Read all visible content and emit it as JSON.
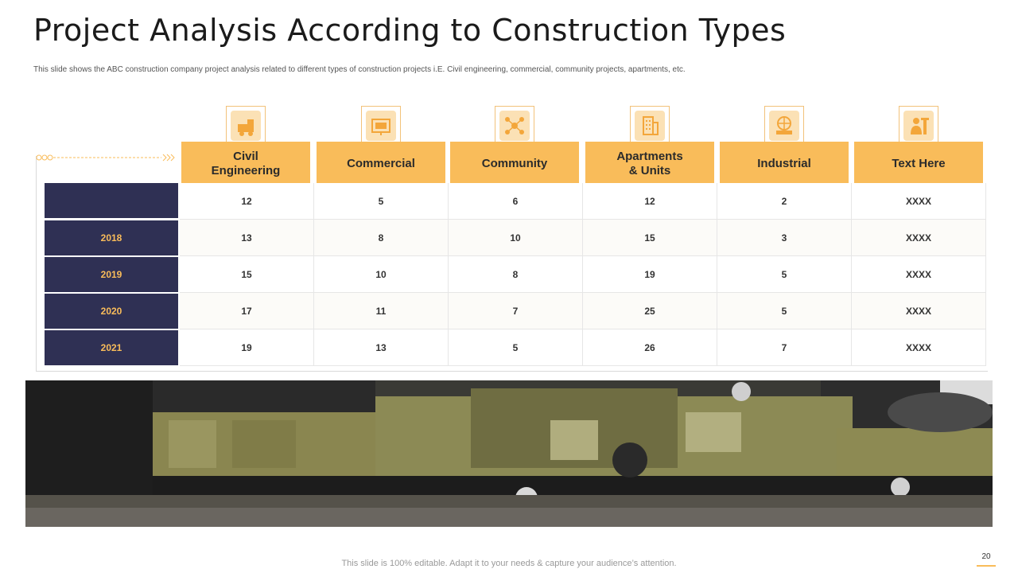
{
  "page": {
    "title": "Project Analysis According to Construction Types",
    "subtitle": "This slide shows the ABC construction company project analysis related to different types of construction projects i.E. Civil engineering, commercial, community  projects, apartments, etc.",
    "footer": "This slide is 100% editable. Adapt it to your needs & capture your audience’s attention.",
    "page_number": "20"
  },
  "table": {
    "columns": [
      {
        "label": "Civil\nEngineering",
        "icon": "construction-vehicle-icon"
      },
      {
        "label": "Commercial",
        "icon": "commercial-display-icon"
      },
      {
        "label": "Community",
        "icon": "community-network-icon"
      },
      {
        "label": "Apartments\n& Units",
        "icon": "apartment-building-icon"
      },
      {
        "label": "Industrial",
        "icon": "industrial-globe-icon"
      },
      {
        "label": "Text Here",
        "icon": "worker-icon"
      }
    ],
    "rows": [
      {
        "label": "",
        "values": [
          "12",
          "5",
          "6",
          "12",
          "2",
          "XXXX"
        ]
      },
      {
        "label": "2018",
        "values": [
          "13",
          "8",
          "10",
          "15",
          "3",
          "XXXX"
        ]
      },
      {
        "label": "2019",
        "values": [
          "15",
          "10",
          "8",
          "19",
          "5",
          "XXXX"
        ]
      },
      {
        "label": "2020",
        "values": [
          "17",
          "11",
          "7",
          "25",
          "5",
          "XXXX"
        ]
      },
      {
        "label": "2021",
        "values": [
          "19",
          "13",
          "5",
          "26",
          "7",
          "XXXX"
        ]
      }
    ]
  },
  "colors": {
    "accent": "#f9bc5a",
    "navy": "#2f3054"
  }
}
